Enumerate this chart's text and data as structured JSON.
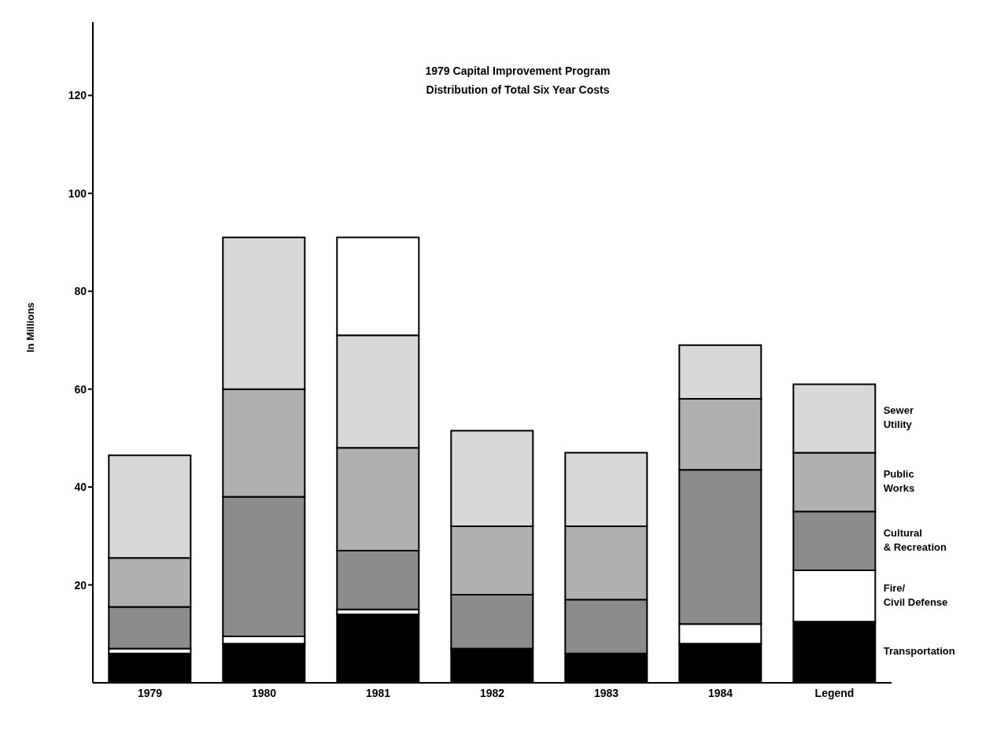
{
  "chart_data": {
    "type": "bar",
    "stacked": true,
    "title": "1979 Capital Improvement Program",
    "subtitle": "Distribution of Total Six Year Costs",
    "ylabel": "In Millions",
    "categories": [
      "1979",
      "1980",
      "1981",
      "1982",
      "1983",
      "1984",
      "Legend"
    ],
    "series": [
      {
        "name": "Transportation",
        "color": "#000000",
        "values": [
          6,
          8,
          14,
          7,
          6,
          8,
          12.5
        ]
      },
      {
        "name": "Fire/ Civil Defense",
        "color": "#ffffff",
        "values": [
          1,
          1.5,
          1,
          0,
          0,
          4,
          10.5
        ]
      },
      {
        "name": "Cultural & Recreation",
        "color": "#8c8c8c",
        "values": [
          8.5,
          28.5,
          12,
          11,
          11,
          31.5,
          12
        ]
      },
      {
        "name": "Public Works",
        "color": "#b0b0b0",
        "values": [
          10,
          22,
          21,
          14,
          15,
          14.5,
          12
        ]
      },
      {
        "name": "Sewer Utility",
        "color": "#d8d8d8",
        "values": [
          21,
          31,
          23,
          19.5,
          15,
          11,
          14
        ]
      },
      {
        "color": "#ffffff",
        "values": [
          null,
          null,
          20,
          null,
          null,
          null,
          null
        ]
      }
    ],
    "ylim": [
      0,
      135
    ],
    "yticks": [
      20,
      40,
      60,
      80,
      100,
      120
    ],
    "grid": false
  }
}
